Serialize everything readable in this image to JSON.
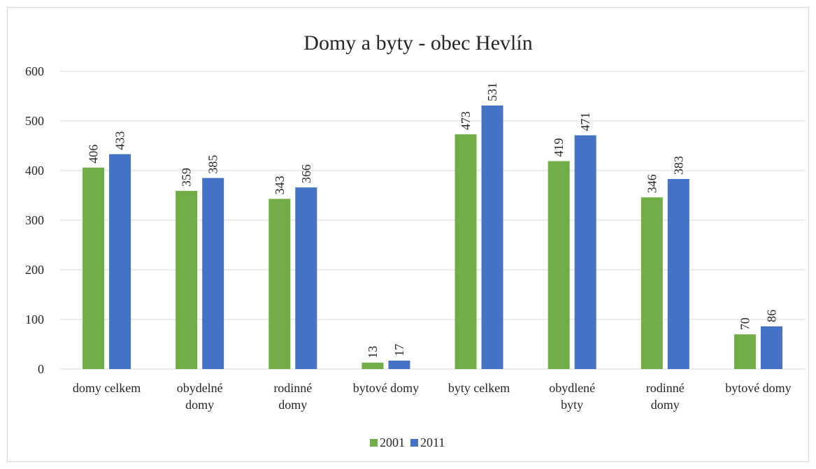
{
  "chart_data": {
    "type": "bar",
    "title": "Domy a byty - obec Hevlín",
    "xlabel": "",
    "ylabel": "",
    "ylim": [
      0,
      600
    ],
    "yticks": [
      0,
      100,
      200,
      300,
      400,
      500,
      600
    ],
    "grid": true,
    "legend_position": "bottom",
    "categories": [
      [
        "domy celkem"
      ],
      [
        "obydelné",
        "domy"
      ],
      [
        "rodinné",
        "domy"
      ],
      [
        "bytové domy"
      ],
      [
        "byty celkem"
      ],
      [
        "obydlené",
        "byty"
      ],
      [
        "rodinné",
        "domy"
      ],
      [
        "bytové domy"
      ]
    ],
    "series": [
      {
        "name": "2001",
        "color": "#70ad47",
        "values": [
          406,
          359,
          343,
          13,
          473,
          419,
          346,
          70
        ]
      },
      {
        "name": "2011",
        "color": "#4472c4",
        "values": [
          433,
          385,
          366,
          17,
          531,
          471,
          383,
          86
        ]
      }
    ],
    "gridline_color": "#d9d9d9",
    "text_color": "#262626"
  }
}
